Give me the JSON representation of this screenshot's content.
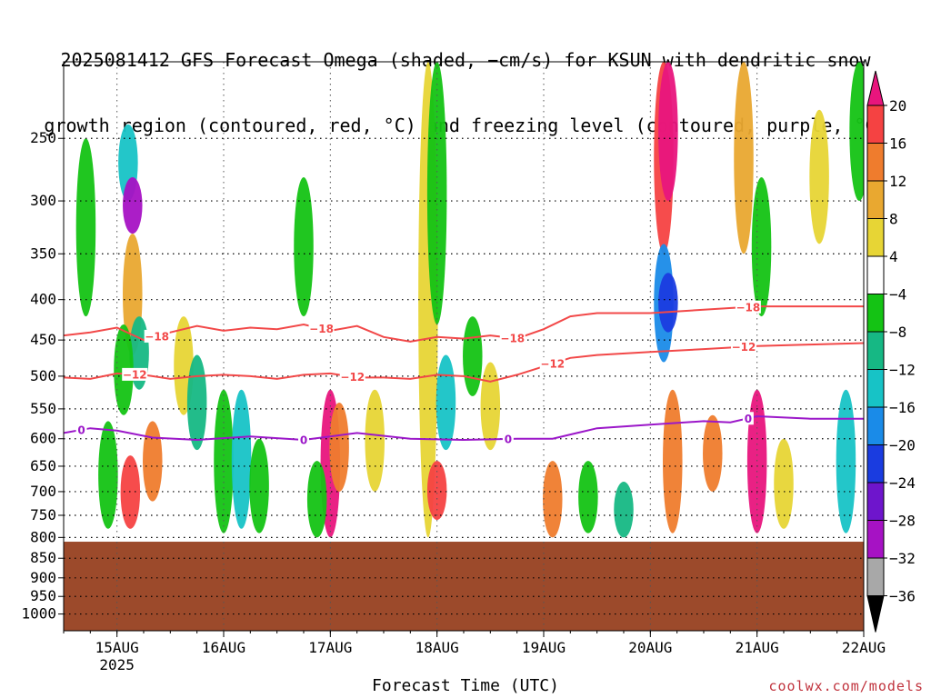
{
  "chart_data": {
    "type": "heatmap",
    "title_lines": [
      "2025081412 GFS Forecast Omega (shaded, −cm/s) for KSUN with dendritic snow",
      "growth region (contoured, red, °C) and freezing level (contoured, purple, °C)"
    ],
    "xlabel": "Forecast Time (UTC)",
    "ylabel": "",
    "y_scale": "log",
    "ylim_hpa": [
      1050,
      200
    ],
    "xlim_hours": [
      0,
      180
    ],
    "x_ticks": [
      {
        "hour": 12,
        "label": "15AUG",
        "sub": "2025"
      },
      {
        "hour": 36,
        "label": "16AUG",
        "sub": ""
      },
      {
        "hour": 60,
        "label": "17AUG",
        "sub": ""
      },
      {
        "hour": 84,
        "label": "18AUG",
        "sub": ""
      },
      {
        "hour": 108,
        "label": "19AUG",
        "sub": ""
      },
      {
        "hour": 132,
        "label": "20AUG",
        "sub": ""
      },
      {
        "hour": 156,
        "label": "21AUG",
        "sub": ""
      },
      {
        "hour": 180,
        "label": "22AUG",
        "sub": ""
      }
    ],
    "y_ticks": [
      250,
      300,
      350,
      400,
      450,
      500,
      550,
      600,
      650,
      700,
      750,
      800,
      850,
      900,
      950,
      1000
    ],
    "grid": true,
    "terrain_top_hpa": 810,
    "colorbar": {
      "levels": [
        20,
        16,
        12,
        8,
        4,
        -4,
        -8,
        -12,
        -16,
        -20,
        -24,
        -28,
        -32,
        -36
      ],
      "colors": [
        "#e8157d",
        "#f54242",
        "#ef7c2d",
        "#e9a830",
        "#e7d535",
        "#ffffff",
        "#14c314",
        "#16b884",
        "#17c3c6",
        "#1a8be8",
        "#1a3ce0",
        "#6e15cc",
        "#a612c4",
        "#a8a8a8",
        "#000000"
      ]
    },
    "freezing_level": {
      "color": "#9b17c9",
      "label": "0",
      "hours": [
        0,
        6,
        12,
        20,
        30,
        42,
        54,
        60,
        66,
        78,
        90,
        102,
        110,
        120,
        132,
        144,
        150,
        156,
        168,
        180
      ],
      "pressure": [
        590,
        582,
        586,
        598,
        602,
        596,
        602,
        596,
        590,
        600,
        602,
        600,
        600,
        582,
        576,
        570,
        572,
        562,
        566,
        566
      ],
      "label_hours": [
        4,
        54,
        100,
        154
      ]
    },
    "dgz_minus18": {
      "color": "#f24848",
      "label": "−18",
      "hours": [
        0,
        6,
        12,
        18,
        24,
        30,
        36,
        42,
        48,
        54,
        60,
        66,
        72,
        78,
        84,
        90,
        96,
        102,
        108,
        114,
        120,
        132,
        144,
        156,
        168,
        180
      ],
      "pressure": [
        444,
        440,
        434,
        450,
        440,
        432,
        438,
        434,
        436,
        430,
        438,
        432,
        446,
        452,
        446,
        448,
        444,
        448,
        436,
        420,
        416,
        416,
        412,
        408,
        408,
        408
      ],
      "label_hours": [
        21,
        58,
        101,
        154
      ]
    },
    "dgz_minus12": {
      "color": "#f24848",
      "label": "−12",
      "hours": [
        0,
        6,
        12,
        18,
        24,
        30,
        36,
        42,
        48,
        54,
        60,
        66,
        72,
        78,
        84,
        90,
        96,
        102,
        108,
        114,
        120,
        132,
        144,
        156,
        168,
        180
      ],
      "pressure": [
        502,
        504,
        496,
        498,
        504,
        500,
        498,
        500,
        504,
        498,
        496,
        502,
        502,
        504,
        498,
        500,
        508,
        498,
        486,
        474,
        470,
        466,
        462,
        458,
        456,
        454
      ],
      "label_hours": [
        16,
        65,
        110,
        153
      ]
    },
    "omega_cells": [
      {
        "hour": 14.5,
        "p_top": 240,
        "p_bot": 300,
        "v": -16
      },
      {
        "hour": 15.5,
        "p_top": 280,
        "p_bot": 330,
        "v": -30
      },
      {
        "hour": 15.5,
        "p_top": 330,
        "p_bot": 470,
        "v": 8
      },
      {
        "hour": 17,
        "p_top": 420,
        "p_bot": 520,
        "v": -12
      },
      {
        "hour": 13.5,
        "p_top": 430,
        "p_bot": 560,
        "v": -8
      },
      {
        "hour": 15,
        "p_top": 630,
        "p_bot": 780,
        "v": 16
      },
      {
        "hour": 20,
        "p_top": 570,
        "p_bot": 720,
        "v": 12
      },
      {
        "hour": 10,
        "p_top": 570,
        "p_bot": 780,
        "v": -8
      },
      {
        "hour": 5,
        "p_top": 250,
        "p_bot": 420,
        "v": -8
      },
      {
        "hour": 27,
        "p_top": 420,
        "p_bot": 560,
        "v": 4
      },
      {
        "hour": 30,
        "p_top": 470,
        "p_bot": 620,
        "v": -12
      },
      {
        "hour": 36,
        "p_top": 520,
        "p_bot": 790,
        "v": -8
      },
      {
        "hour": 40,
        "p_top": 520,
        "p_bot": 780,
        "v": -16
      },
      {
        "hour": 44,
        "p_top": 600,
        "p_bot": 790,
        "v": -8
      },
      {
        "hour": 54,
        "p_top": 280,
        "p_bot": 420,
        "v": -8
      },
      {
        "hour": 60,
        "p_top": 520,
        "p_bot": 800,
        "v": 20
      },
      {
        "hour": 62,
        "p_top": 540,
        "p_bot": 700,
        "v": 12
      },
      {
        "hour": 57,
        "p_top": 640,
        "p_bot": 800,
        "v": -8
      },
      {
        "hour": 70,
        "p_top": 520,
        "p_bot": 700,
        "v": 4
      },
      {
        "hour": 82,
        "p_top": 200,
        "p_bot": 800,
        "v": 4
      },
      {
        "hour": 84,
        "p_top": 640,
        "p_bot": 760,
        "v": 16
      },
      {
        "hour": 86,
        "p_top": 470,
        "p_bot": 620,
        "v": -16
      },
      {
        "hour": 84,
        "p_top": 200,
        "p_bot": 430,
        "v": -8
      },
      {
        "hour": 92,
        "p_top": 420,
        "p_bot": 530,
        "v": -8
      },
      {
        "hour": 96,
        "p_top": 480,
        "p_bot": 620,
        "v": 4
      },
      {
        "hour": 110,
        "p_top": 640,
        "p_bot": 800,
        "v": 12
      },
      {
        "hour": 118,
        "p_top": 640,
        "p_bot": 790,
        "v": -8
      },
      {
        "hour": 126,
        "p_top": 680,
        "p_bot": 800,
        "v": -12
      },
      {
        "hour": 135,
        "p_top": 200,
        "p_bot": 350,
        "v": 16
      },
      {
        "hour": 136,
        "p_top": 200,
        "p_bot": 300,
        "v": 20
      },
      {
        "hour": 135,
        "p_top": 340,
        "p_bot": 480,
        "v": -20
      },
      {
        "hour": 136,
        "p_top": 370,
        "p_bot": 440,
        "v": -24
      },
      {
        "hour": 137,
        "p_top": 520,
        "p_bot": 790,
        "v": 12
      },
      {
        "hour": 146,
        "p_top": 560,
        "p_bot": 700,
        "v": 12
      },
      {
        "hour": 156,
        "p_top": 520,
        "p_bot": 790,
        "v": 20
      },
      {
        "hour": 153,
        "p_top": 200,
        "p_bot": 350,
        "v": 8
      },
      {
        "hour": 157,
        "p_top": 280,
        "p_bot": 420,
        "v": -8
      },
      {
        "hour": 162,
        "p_top": 600,
        "p_bot": 780,
        "v": 4
      },
      {
        "hour": 170,
        "p_top": 230,
        "p_bot": 340,
        "v": 4
      },
      {
        "hour": 176,
        "p_top": 520,
        "p_bot": 790,
        "v": -16
      },
      {
        "hour": 179,
        "p_top": 200,
        "p_bot": 300,
        "v": -8
      }
    ]
  },
  "credit": "coolwx.com/models"
}
